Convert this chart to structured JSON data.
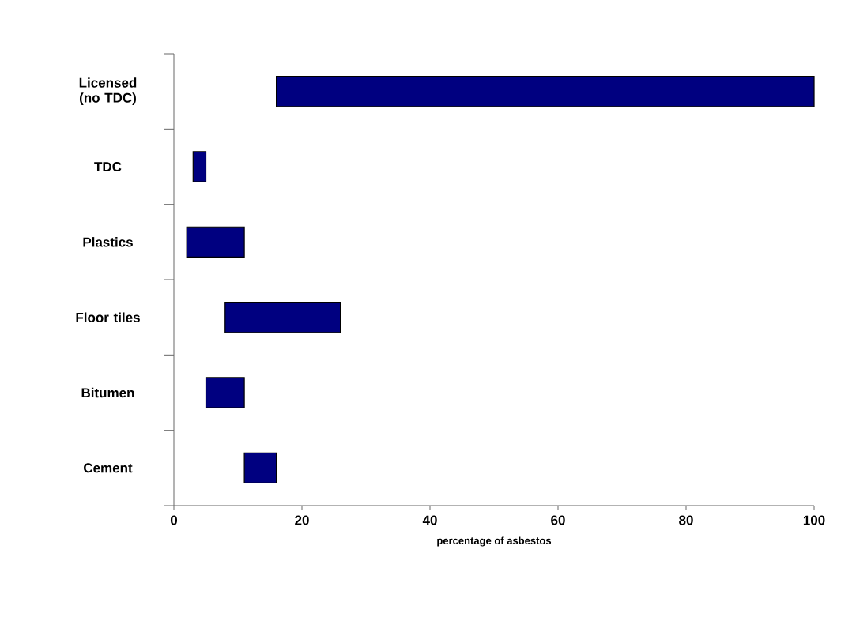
{
  "chart_data": {
    "type": "bar",
    "orientation": "horizontal",
    "categories": [
      "Licensed (no TDC)",
      "TDC",
      "Plastics",
      "Floor tiles",
      "Bitumen",
      "Cement"
    ],
    "base": [
      16,
      3,
      2,
      8,
      5,
      11
    ],
    "values": [
      84,
      2,
      9,
      18,
      6,
      5
    ],
    "color": "#000080",
    "xlabel": "percentage of asbestos",
    "xlim": [
      0,
      100
    ],
    "xticks": [
      0,
      20,
      40,
      60,
      80,
      100
    ]
  }
}
